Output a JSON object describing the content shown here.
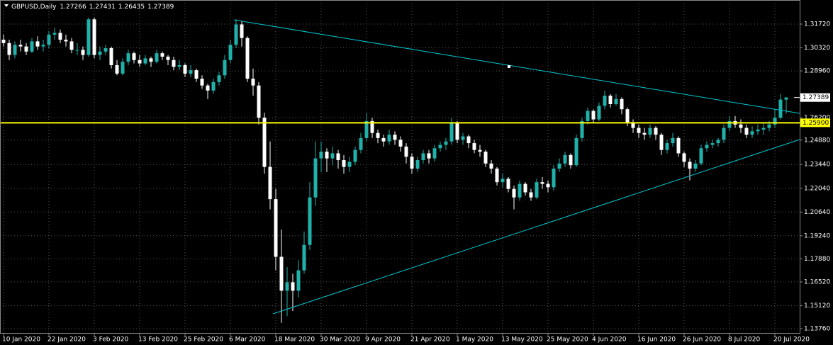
{
  "chart_data": {
    "type": "candlestick",
    "title": "GBPUSD,Daily",
    "up_color": "#20b2aa",
    "down_color": "#ffffff",
    "grid": true,
    "ylim": [
      1.1351,
      1.3314
    ],
    "yticks": [
      {
        "value": 1.3172,
        "label": "1.31720"
      },
      {
        "value": 1.3032,
        "label": "1.30320"
      },
      {
        "value": 1.2896,
        "label": "1.28960"
      },
      {
        "value": 1.262,
        "label": "1.26200"
      },
      {
        "value": 1.2488,
        "label": "1.24880"
      },
      {
        "value": 1.2344,
        "label": "1.23440"
      },
      {
        "value": 1.2204,
        "label": "1.22040"
      },
      {
        "value": 1.2064,
        "label": "1.20640"
      },
      {
        "value": 1.1924,
        "label": "1.19240"
      },
      {
        "value": 1.1788,
        "label": "1.17880"
      },
      {
        "value": 1.1652,
        "label": "1.16520"
      },
      {
        "value": 1.1512,
        "label": "1.15120"
      },
      {
        "value": 1.1376,
        "label": "1.13760"
      }
    ],
    "hline": {
      "value": 1.259,
      "label": "1.25900",
      "color": "#ffff00"
    },
    "categories": [
      "10 Jan 2020",
      null,
      null,
      null,
      null,
      null,
      null,
      null,
      "22 Jan 2020",
      null,
      null,
      null,
      null,
      null,
      null,
      null,
      "3 Feb 2020",
      null,
      null,
      null,
      null,
      null,
      null,
      null,
      "13 Feb 2020",
      null,
      null,
      null,
      null,
      null,
      null,
      null,
      "25 Feb 2020",
      null,
      null,
      null,
      null,
      null,
      null,
      null,
      "6 Mar 2020",
      null,
      null,
      null,
      null,
      null,
      null,
      null,
      "18 Mar 2020",
      null,
      null,
      null,
      null,
      null,
      null,
      null,
      "30 Mar 2020",
      null,
      null,
      null,
      null,
      null,
      null,
      null,
      "9 Apr 2020",
      null,
      null,
      null,
      null,
      null,
      null,
      null,
      "21 Apr 2020",
      null,
      null,
      null,
      null,
      null,
      null,
      null,
      "1 May 2020",
      null,
      null,
      null,
      null,
      null,
      null,
      null,
      "13 May 2020",
      null,
      null,
      null,
      null,
      null,
      null,
      null,
      "25 May 2020",
      null,
      null,
      null,
      null,
      null,
      null,
      null,
      "4 Jun 2020",
      null,
      null,
      null,
      null,
      null,
      null,
      null,
      "16 Jun 2020",
      null,
      null,
      null,
      null,
      null,
      null,
      null,
      "26 Jun 2020",
      null,
      null,
      null,
      null,
      null,
      null,
      null,
      "8 Jul 2020",
      null,
      null,
      null,
      null,
      null,
      null,
      null,
      "20 Jul 2020",
      null,
      null
    ],
    "ohlc": [
      [
        1.308,
        1.311,
        1.304,
        1.306
      ],
      [
        1.306,
        1.308,
        1.296,
        1.299
      ],
      [
        1.299,
        1.307,
        1.297,
        1.305
      ],
      [
        1.305,
        1.308,
        1.301,
        1.304
      ],
      [
        1.304,
        1.306,
        1.299,
        1.301
      ],
      [
        1.301,
        1.309,
        1.3,
        1.307
      ],
      [
        1.307,
        1.31,
        1.302,
        1.304
      ],
      [
        1.304,
        1.308,
        1.301,
        1.305
      ],
      [
        1.305,
        1.313,
        1.303,
        1.311
      ],
      [
        1.311,
        1.315,
        1.308,
        1.312
      ],
      [
        1.312,
        1.314,
        1.306,
        1.308
      ],
      [
        1.308,
        1.311,
        1.304,
        1.307
      ],
      [
        1.307,
        1.309,
        1.3,
        1.302
      ],
      [
        1.302,
        1.306,
        1.299,
        1.302
      ],
      [
        1.302,
        1.304,
        1.296,
        1.299
      ],
      [
        1.299,
        1.321,
        1.298,
        1.32
      ],
      [
        1.32,
        1.321,
        1.297,
        1.299
      ],
      [
        1.299,
        1.304,
        1.296,
        1.301
      ],
      [
        1.301,
        1.305,
        1.299,
        1.303
      ],
      [
        1.303,
        1.304,
        1.291,
        1.293
      ],
      [
        1.293,
        1.296,
        1.287,
        1.288
      ],
      [
        1.288,
        1.297,
        1.287,
        1.295
      ],
      [
        1.295,
        1.302,
        1.293,
        1.3
      ],
      [
        1.3,
        1.301,
        1.294,
        1.296
      ],
      [
        1.296,
        1.299,
        1.292,
        1.294
      ],
      [
        1.294,
        1.299,
        1.293,
        1.297
      ],
      [
        1.297,
        1.298,
        1.292,
        1.295
      ],
      [
        1.295,
        1.302,
        1.294,
        1.3
      ],
      [
        1.3,
        1.301,
        1.296,
        1.298
      ],
      [
        1.298,
        1.299,
        1.293,
        1.296
      ],
      [
        1.296,
        1.298,
        1.29,
        1.292
      ],
      [
        1.292,
        1.296,
        1.29,
        1.293
      ],
      [
        1.293,
        1.294,
        1.286,
        1.288
      ],
      [
        1.288,
        1.293,
        1.286,
        1.29
      ],
      [
        1.29,
        1.291,
        1.283,
        1.285
      ],
      [
        1.285,
        1.287,
        1.279,
        1.281
      ],
      [
        1.281,
        1.282,
        1.273,
        1.278
      ],
      [
        1.278,
        1.285,
        1.276,
        1.283
      ],
      [
        1.283,
        1.289,
        1.281,
        1.287
      ],
      [
        1.287,
        1.299,
        1.285,
        1.296
      ],
      [
        1.296,
        1.308,
        1.294,
        1.305
      ],
      [
        1.305,
        1.32,
        1.303,
        1.317
      ],
      [
        1.317,
        1.319,
        1.304,
        1.309
      ],
      [
        1.309,
        1.31,
        1.283,
        1.285
      ],
      [
        1.285,
        1.291,
        1.275,
        1.281
      ],
      [
        1.281,
        1.283,
        1.258,
        1.262
      ],
      [
        1.262,
        1.265,
        1.229,
        1.233
      ],
      [
        1.233,
        1.248,
        1.208,
        1.214
      ],
      [
        1.214,
        1.22,
        1.172,
        1.18
      ],
      [
        1.18,
        1.196,
        1.141,
        1.16
      ],
      [
        1.16,
        1.174,
        1.145,
        1.165
      ],
      [
        1.165,
        1.17,
        1.148,
        1.16
      ],
      [
        1.16,
        1.178,
        1.156,
        1.172
      ],
      [
        1.172,
        1.195,
        1.17,
        1.187
      ],
      [
        1.187,
        1.224,
        1.184,
        1.215
      ],
      [
        1.215,
        1.248,
        1.21,
        1.238
      ],
      [
        1.238,
        1.248,
        1.23,
        1.242
      ],
      [
        1.242,
        1.244,
        1.23,
        1.238
      ],
      [
        1.238,
        1.245,
        1.234,
        1.241
      ],
      [
        1.241,
        1.243,
        1.232,
        1.237
      ],
      [
        1.237,
        1.24,
        1.229,
        1.233
      ],
      [
        1.233,
        1.239,
        1.23,
        1.236
      ],
      [
        1.236,
        1.245,
        1.234,
        1.243
      ],
      [
        1.243,
        1.253,
        1.241,
        1.25
      ],
      [
        1.25,
        1.265,
        1.248,
        1.26
      ],
      [
        1.26,
        1.262,
        1.25,
        1.253
      ],
      [
        1.253,
        1.255,
        1.247,
        1.25
      ],
      [
        1.25,
        1.252,
        1.245,
        1.248
      ],
      [
        1.248,
        1.255,
        1.246,
        1.252
      ],
      [
        1.252,
        1.254,
        1.246,
        1.249
      ],
      [
        1.249,
        1.251,
        1.242,
        1.245
      ],
      [
        1.245,
        1.247,
        1.235,
        1.239
      ],
      [
        1.239,
        1.241,
        1.229,
        1.232
      ],
      [
        1.232,
        1.239,
        1.23,
        1.237
      ],
      [
        1.237,
        1.243,
        1.235,
        1.241
      ],
      [
        1.241,
        1.243,
        1.235,
        1.238
      ],
      [
        1.238,
        1.246,
        1.236,
        1.244
      ],
      [
        1.244,
        1.248,
        1.242,
        1.246
      ],
      [
        1.246,
        1.25,
        1.243,
        1.248
      ],
      [
        1.248,
        1.262,
        1.246,
        1.259
      ],
      [
        1.259,
        1.26,
        1.247,
        1.249
      ],
      [
        1.249,
        1.253,
        1.246,
        1.251
      ],
      [
        1.251,
        1.252,
        1.244,
        1.247
      ],
      [
        1.247,
        1.249,
        1.241,
        1.243
      ],
      [
        1.243,
        1.246,
        1.239,
        1.242
      ],
      [
        1.242,
        1.243,
        1.233,
        1.235
      ],
      [
        1.235,
        1.237,
        1.229,
        1.232
      ],
      [
        1.232,
        1.233,
        1.222,
        1.224
      ],
      [
        1.224,
        1.229,
        1.221,
        1.226
      ],
      [
        1.226,
        1.227,
        1.218,
        1.22
      ],
      [
        1.22,
        1.222,
        1.208,
        1.215
      ],
      [
        1.215,
        1.225,
        1.213,
        1.223
      ],
      [
        1.223,
        1.224,
        1.216,
        1.218
      ],
      [
        1.218,
        1.22,
        1.213,
        1.215
      ],
      [
        1.215,
        1.226,
        1.214,
        1.224
      ],
      [
        1.224,
        1.227,
        1.22,
        1.223
      ],
      [
        1.223,
        1.225,
        1.218,
        1.221
      ],
      [
        1.221,
        1.234,
        1.219,
        1.232
      ],
      [
        1.232,
        1.238,
        1.23,
        1.235
      ],
      [
        1.235,
        1.242,
        1.233,
        1.24
      ],
      [
        1.24,
        1.241,
        1.232,
        1.234
      ],
      [
        1.234,
        1.252,
        1.233,
        1.25
      ],
      [
        1.25,
        1.262,
        1.248,
        1.26
      ],
      [
        1.26,
        1.268,
        1.258,
        1.266
      ],
      [
        1.266,
        1.267,
        1.259,
        1.261
      ],
      [
        1.261,
        1.271,
        1.26,
        1.269
      ],
      [
        1.269,
        1.278,
        1.267,
        1.275
      ],
      [
        1.275,
        1.276,
        1.268,
        1.27
      ],
      [
        1.27,
        1.276,
        1.269,
        1.273
      ],
      [
        1.273,
        1.274,
        1.264,
        1.267
      ],
      [
        1.267,
        1.268,
        1.257,
        1.259
      ],
      [
        1.259,
        1.261,
        1.253,
        1.256
      ],
      [
        1.256,
        1.258,
        1.25,
        1.253
      ],
      [
        1.253,
        1.256,
        1.249,
        1.252
      ],
      [
        1.252,
        1.258,
        1.25,
        1.256
      ],
      [
        1.256,
        1.257,
        1.249,
        1.252
      ],
      [
        1.252,
        1.253,
        1.24,
        1.243
      ],
      [
        1.243,
        1.249,
        1.241,
        1.247
      ],
      [
        1.247,
        1.253,
        1.245,
        1.25
      ],
      [
        1.25,
        1.251,
        1.239,
        1.241
      ],
      [
        1.241,
        1.242,
        1.233,
        1.236
      ],
      [
        1.236,
        1.238,
        1.225,
        1.232
      ],
      [
        1.232,
        1.237,
        1.23,
        1.235
      ],
      [
        1.235,
        1.246,
        1.234,
        1.244
      ],
      [
        1.244,
        1.248,
        1.242,
        1.246
      ],
      [
        1.246,
        1.249,
        1.244,
        1.247
      ],
      [
        1.247,
        1.25,
        1.245,
        1.249
      ],
      [
        1.249,
        1.258,
        1.247,
        1.256
      ],
      [
        1.256,
        1.263,
        1.254,
        1.26
      ],
      [
        1.26,
        1.263,
        1.256,
        1.258
      ],
      [
        1.258,
        1.261,
        1.253,
        1.256
      ],
      [
        1.256,
        1.258,
        1.25,
        1.252
      ],
      [
        1.252,
        1.257,
        1.25,
        1.254
      ],
      [
        1.254,
        1.258,
        1.252,
        1.255
      ],
      [
        1.255,
        1.259,
        1.252,
        1.256
      ],
      [
        1.256,
        1.26,
        1.254,
        1.258
      ],
      [
        1.258,
        1.267,
        1.256,
        1.262
      ],
      [
        1.262,
        1.276,
        1.261,
        1.2727
      ],
      [
        1.27266,
        1.27431,
        1.26435,
        1.27389
      ]
    ]
  }
}
